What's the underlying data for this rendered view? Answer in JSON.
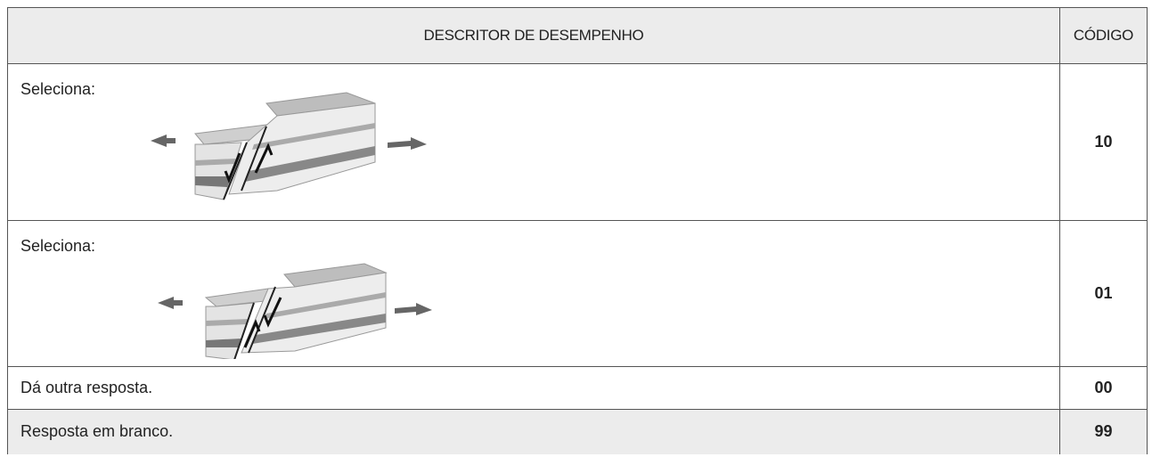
{
  "table": {
    "header": [
      "DESCRITOR DE DESEMPENHO",
      "CÓDIGO"
    ],
    "rows": [
      [
        "Seleciona:",
        "10"
      ],
      [
        "Seleciona:",
        "01"
      ],
      [
        "Dá outra resposta.",
        "00"
      ],
      [
        "Resposta em branco.",
        "99"
      ]
    ]
  }
}
